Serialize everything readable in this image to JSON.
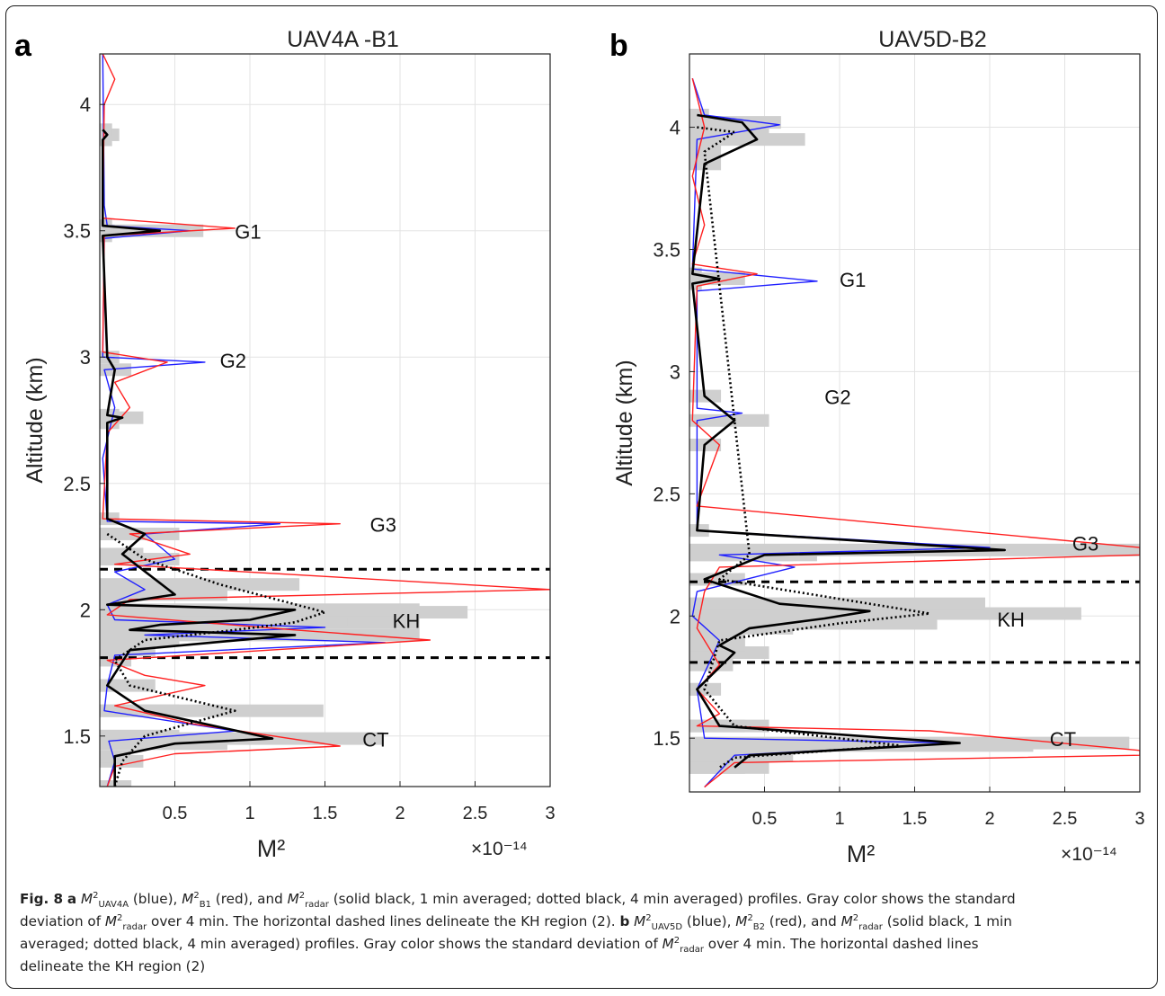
{
  "figure": {
    "panel_a_letter": "a",
    "panel_b_letter": "b",
    "colors": {
      "uav": "#1f1fff",
      "balloon": "#ff2020",
      "radar": "#000000",
      "std": "#c8c8c8",
      "grid": "#e3e3e3"
    }
  },
  "caption": {
    "fig_label": "Fig. 8",
    "line1": "a  M²UAV4A (blue), M²B1 (red), and M²radar (solid black, 1 min averaged; dotted black, 4 min averaged) profiles. Gray color shows the standard",
    "line2": "deviation of M²radar over 4 min. The horizontal dashed lines delineate the KH region (2). b M²UAV5D (blue), M²B2 (red), and M²radar (solid black, 1 min",
    "line3": "averaged; dotted black, 4 min averaged) profiles. Gray color shows the standard deviation of M²radar over 4 min. The horizontal dashed lines",
    "line4": "delineate the KH region (2)",
    "t_a": "a",
    "t_1": "(blue),",
    "t_2": "(red), and",
    "t_3": "(solid black, 1 min averaged; dotted black, 4 min averaged) profiles. Gray color shows the standard",
    "t_4": "deviation of",
    "t_5": "over 4 min. The horizontal dashed lines delineate the KH region (2).",
    "t_b": "b",
    "t_6": "(blue),",
    "t_7": "(red), and",
    "t_8": "(solid black, 1 min",
    "t_9": "averaged; dotted black, 4 min averaged) profiles. Gray color shows the standard deviation of",
    "t_10": "over 4 min. The horizontal dashed lines",
    "t_11": "delineate the KH region (2)",
    "m": "M",
    "sup2": "2",
    "sub_uav4a": "UAV4A",
    "sub_b1": "B1",
    "sub_radar": "radar",
    "sub_uav5d": "UAV5D",
    "sub_b2": "B2"
  },
  "chart_data": [
    {
      "type": "line",
      "title": "UAV4A -B1",
      "ylabel": "Altitude (km)",
      "xlabel": "M²",
      "x_multiplier": "×10⁻¹⁴",
      "xlim": [
        0,
        3
      ],
      "ylim": [
        1.3,
        4.2
      ],
      "xticks": [
        "0.5",
        "1",
        "1.5",
        "2",
        "2.5",
        "3"
      ],
      "yticks": [
        "1.5",
        "2",
        "2.5",
        "3",
        "3.5",
        "4"
      ],
      "grid": true,
      "annotations": [
        {
          "text": "G1",
          "x": 0.9,
          "y": 3.5
        },
        {
          "text": "G2",
          "x": 0.8,
          "y": 2.99
        },
        {
          "text": "G3",
          "x": 1.8,
          "y": 2.34
        },
        {
          "text": "KH",
          "x": 1.95,
          "y": 1.96
        },
        {
          "text": "CT",
          "x": 1.75,
          "y": 1.49
        }
      ],
      "kh_region": [
        1.81,
        2.16
      ],
      "series": [
        {
          "name": "M²UAV4A",
          "color": "blue",
          "points": [
            [
              0.02,
              4.2
            ],
            [
              0.03,
              3.6
            ],
            [
              0.05,
              3.52
            ],
            [
              0.6,
              3.5
            ],
            [
              0.03,
              3.47
            ],
            [
              0.02,
              3.0
            ],
            [
              0.7,
              2.98
            ],
            [
              0.03,
              2.95
            ],
            [
              0.1,
              2.8
            ],
            [
              0.02,
              2.6
            ],
            [
              0.05,
              2.35
            ],
            [
              1.2,
              2.34
            ],
            [
              0.3,
              2.3
            ],
            [
              0.5,
              2.2
            ],
            [
              0.1,
              2.15
            ],
            [
              0.3,
              2.08
            ],
            [
              0.05,
              2.02
            ],
            [
              0.1,
              1.96
            ],
            [
              1.5,
              1.93
            ],
            [
              0.3,
              1.9
            ],
            [
              1.9,
              1.87
            ],
            [
              0.1,
              1.82
            ],
            [
              0.05,
              1.7
            ],
            [
              0.03,
              1.6
            ],
            [
              0.9,
              1.52
            ],
            [
              0.06,
              1.48
            ],
            [
              0.1,
              1.4
            ],
            [
              0.05,
              1.3
            ]
          ]
        },
        {
          "name": "M²B1",
          "color": "red",
          "points": [
            [
              0.02,
              4.2
            ],
            [
              0.1,
              4.1
            ],
            [
              0.03,
              4.0
            ],
            [
              0.02,
              3.55
            ],
            [
              0.9,
              3.51
            ],
            [
              0.03,
              3.48
            ],
            [
              0.02,
              3.02
            ],
            [
              0.45,
              2.98
            ],
            [
              0.1,
              2.9
            ],
            [
              0.2,
              2.8
            ],
            [
              0.05,
              2.7
            ],
            [
              0.02,
              2.36
            ],
            [
              1.6,
              2.34
            ],
            [
              0.2,
              2.3
            ],
            [
              0.6,
              2.22
            ],
            [
              0.1,
              2.18
            ],
            [
              3.0,
              2.08
            ],
            [
              0.2,
              2.04
            ],
            [
              0.05,
              1.98
            ],
            [
              1.3,
              1.92
            ],
            [
              2.2,
              1.88
            ],
            [
              0.05,
              1.8
            ],
            [
              0.3,
              1.74
            ],
            [
              0.7,
              1.7
            ],
            [
              0.1,
              1.62
            ],
            [
              0.6,
              1.55
            ],
            [
              1.6,
              1.46
            ],
            [
              0.5,
              1.43
            ],
            [
              0.1,
              1.38
            ],
            [
              0.05,
              1.3
            ]
          ]
        },
        {
          "name": "M²radar (1 min)",
          "color": "black",
          "points": [
            [
              0.02,
              3.9
            ],
            [
              0.05,
              3.88
            ],
            [
              0.02,
              3.86
            ],
            [
              0.02,
              3.52
            ],
            [
              0.4,
              3.5
            ],
            [
              0.02,
              3.48
            ],
            [
              0.05,
              3.0
            ],
            [
              0.1,
              2.95
            ],
            [
              0.05,
              2.77
            ],
            [
              0.15,
              2.76
            ],
            [
              0.05,
              2.74
            ],
            [
              0.05,
              2.36
            ],
            [
              0.3,
              2.3
            ],
            [
              0.15,
              2.22
            ],
            [
              0.5,
              2.06
            ],
            [
              0.05,
              2.02
            ],
            [
              1.3,
              2.0
            ],
            [
              1.0,
              1.96
            ],
            [
              0.4,
              1.94
            ],
            [
              0.2,
              1.92
            ],
            [
              1.3,
              1.9
            ],
            [
              0.2,
              1.84
            ],
            [
              0.05,
              1.7
            ],
            [
              0.3,
              1.6
            ],
            [
              1.15,
              1.49
            ],
            [
              0.5,
              1.47
            ],
            [
              0.1,
              1.42
            ],
            [
              0.1,
              1.3
            ]
          ]
        },
        {
          "name": "M²radar (4 min)",
          "color": "black-dotted",
          "points": [
            [
              0.05,
              2.3
            ],
            [
              0.3,
              2.2
            ],
            [
              0.8,
              2.1
            ],
            [
              1.5,
              1.99
            ],
            [
              1.3,
              1.95
            ],
            [
              0.9,
              1.92
            ],
            [
              0.3,
              1.88
            ],
            [
              0.1,
              1.8
            ],
            [
              0.2,
              1.7
            ],
            [
              0.9,
              1.6
            ],
            [
              0.3,
              1.5
            ],
            [
              0.15,
              1.4
            ],
            [
              0.1,
              1.3
            ]
          ]
        }
      ]
    },
    {
      "type": "line",
      "title": "UAV5D-B2",
      "ylabel": "Altitude (km)",
      "xlabel": "M²",
      "x_multiplier": "×10⁻¹⁴",
      "xlim": [
        0,
        3
      ],
      "ylim": [
        1.28,
        4.3
      ],
      "xticks": [
        "0.5",
        "1",
        "1.5",
        "2",
        "2.5",
        "3"
      ],
      "yticks": [
        "1.5",
        "2",
        "2.5",
        "3",
        "3.5",
        "4",
        "4.5"
      ],
      "grid": true,
      "annotations": [
        {
          "text": "G1",
          "x": 1.0,
          "y": 3.38
        },
        {
          "text": "G2",
          "x": 0.9,
          "y": 2.9
        },
        {
          "text": "G3",
          "x": 2.55,
          "y": 2.3
        },
        {
          "text": "KH",
          "x": 2.05,
          "y": 1.99
        },
        {
          "text": "CT",
          "x": 2.4,
          "y": 1.5
        }
      ],
      "kh_region": [
        1.81,
        2.14
      ],
      "series": [
        {
          "name": "M²UAV5D",
          "color": "blue",
          "points": [
            [
              0.02,
              4.2
            ],
            [
              0.1,
              4.05
            ],
            [
              0.6,
              4.01
            ],
            [
              0.05,
              3.95
            ],
            [
              0.02,
              3.42
            ],
            [
              0.85,
              3.37
            ],
            [
              0.05,
              3.33
            ],
            [
              0.05,
              2.85
            ],
            [
              0.35,
              2.83
            ],
            [
              0.05,
              2.8
            ],
            [
              0.05,
              2.35
            ],
            [
              2.0,
              2.28
            ],
            [
              0.2,
              2.25
            ],
            [
              0.7,
              2.2
            ],
            [
              0.05,
              2.1
            ],
            [
              0.02,
              2.0
            ],
            [
              0.2,
              1.9
            ],
            [
              0.05,
              1.7
            ],
            [
              0.1,
              1.5
            ],
            [
              1.8,
              1.48
            ],
            [
              0.3,
              1.43
            ],
            [
              0.1,
              1.3
            ]
          ]
        },
        {
          "name": "M²B2",
          "color": "red",
          "points": [
            [
              0.02,
              4.2
            ],
            [
              0.1,
              4.0
            ],
            [
              0.02,
              3.8
            ],
            [
              0.1,
              3.6
            ],
            [
              0.02,
              3.44
            ],
            [
              0.45,
              3.4
            ],
            [
              0.05,
              3.35
            ],
            [
              0.02,
              2.8
            ],
            [
              0.2,
              2.7
            ],
            [
              0.05,
              2.45
            ],
            [
              3.0,
              2.28
            ],
            [
              3.0,
              2.25
            ],
            [
              0.2,
              2.2
            ],
            [
              0.1,
              2.1
            ],
            [
              0.05,
              1.95
            ],
            [
              0.2,
              1.8
            ],
            [
              0.05,
              1.7
            ],
            [
              0.2,
              1.6
            ],
            [
              0.05,
              1.55
            ],
            [
              1.6,
              1.53
            ],
            [
              3.0,
              1.45
            ],
            [
              3.0,
              1.43
            ],
            [
              0.3,
              1.4
            ],
            [
              0.1,
              1.3
            ]
          ]
        },
        {
          "name": "M²radar (1 min)",
          "color": "black",
          "points": [
            [
              0.05,
              4.05
            ],
            [
              0.35,
              4.02
            ],
            [
              0.45,
              3.95
            ],
            [
              0.1,
              3.85
            ],
            [
              0.02,
              3.4
            ],
            [
              0.2,
              3.38
            ],
            [
              0.02,
              3.36
            ],
            [
              0.1,
              2.9
            ],
            [
              0.3,
              2.8
            ],
            [
              0.1,
              2.7
            ],
            [
              0.05,
              2.35
            ],
            [
              2.1,
              2.27
            ],
            [
              0.5,
              2.25
            ],
            [
              0.1,
              2.15
            ],
            [
              0.6,
              2.05
            ],
            [
              1.2,
              2.02
            ],
            [
              0.9,
              1.99
            ],
            [
              0.4,
              1.95
            ],
            [
              0.2,
              1.88
            ],
            [
              0.3,
              1.85
            ],
            [
              0.05,
              1.7
            ],
            [
              0.2,
              1.55
            ],
            [
              1.8,
              1.48
            ],
            [
              0.4,
              1.43
            ],
            [
              0.3,
              1.38
            ]
          ]
        },
        {
          "name": "M²radar (4 min)",
          "color": "black-dotted",
          "points": [
            [
              0.05,
              4.0
            ],
            [
              0.3,
              3.98
            ],
            [
              0.1,
              3.9
            ],
            [
              0.4,
              2.25
            ],
            [
              0.2,
              2.15
            ],
            [
              1.2,
              2.05
            ],
            [
              1.6,
              2.01
            ],
            [
              1.0,
              1.97
            ],
            [
              0.2,
              1.9
            ],
            [
              0.15,
              1.8
            ],
            [
              0.1,
              1.7
            ],
            [
              0.3,
              1.55
            ],
            [
              1.4,
              1.47
            ],
            [
              0.3,
              1.42
            ],
            [
              0.2,
              1.38
            ]
          ]
        }
      ]
    }
  ]
}
